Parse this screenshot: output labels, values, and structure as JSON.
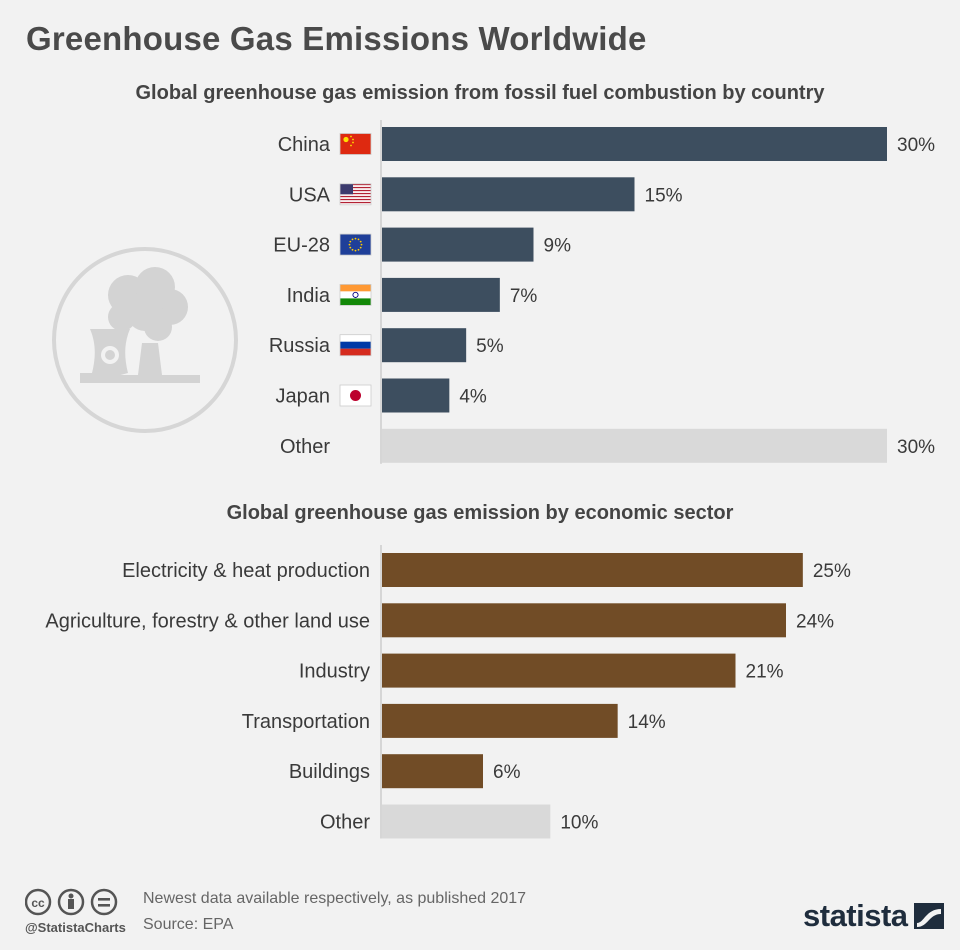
{
  "header": {
    "title": "Greenhouse Gas Emissions Worldwide"
  },
  "chart_data": [
    {
      "type": "bar",
      "orientation": "horizontal",
      "title": "Global greenhouse gas emission from fossil fuel combustion by country",
      "categories": [
        "China",
        "USA",
        "EU-28",
        "India",
        "Russia",
        "Japan",
        "Other"
      ],
      "values": [
        30,
        15,
        9,
        7,
        5,
        4,
        30
      ],
      "labels": [
        "30%",
        "15%",
        "9%",
        "7%",
        "5%",
        "4%",
        "30%"
      ],
      "flags": [
        "china-flag-icon",
        "usa-flag-icon",
        "eu-flag-icon",
        "india-flag-icon",
        "russia-flag-icon",
        "japan-flag-icon",
        ""
      ],
      "colors": [
        "#3d4e5f",
        "#3d4e5f",
        "#3d4e5f",
        "#3d4e5f",
        "#3d4e5f",
        "#3d4e5f",
        "#d9d9d9"
      ],
      "xlim": [
        0,
        30
      ],
      "grid": false
    },
    {
      "type": "bar",
      "orientation": "horizontal",
      "title": "Global greenhouse gas emission by economic sector",
      "categories": [
        "Electricity & heat production",
        "Agriculture, forestry & other land use",
        "Industry",
        "Transportation",
        "Buildings",
        "Other"
      ],
      "values": [
        25,
        24,
        21,
        14,
        6,
        10
      ],
      "labels": [
        "25%",
        "24%",
        "21%",
        "14%",
        "6%",
        "10%"
      ],
      "colors": [
        "#714c26",
        "#714c26",
        "#714c26",
        "#714c26",
        "#714c26",
        "#d9d9d9"
      ],
      "xlim": [
        0,
        30
      ],
      "grid": false
    }
  ],
  "footer": {
    "handle": "@StatistaCharts",
    "note": "Newest data available respectively, as published 2017",
    "source": "Source: EPA",
    "brand": "statista"
  },
  "icons": [
    "factory-icon",
    "cc-icon",
    "attribution-icon",
    "no-derivatives-icon",
    "statista-logo-icon"
  ]
}
